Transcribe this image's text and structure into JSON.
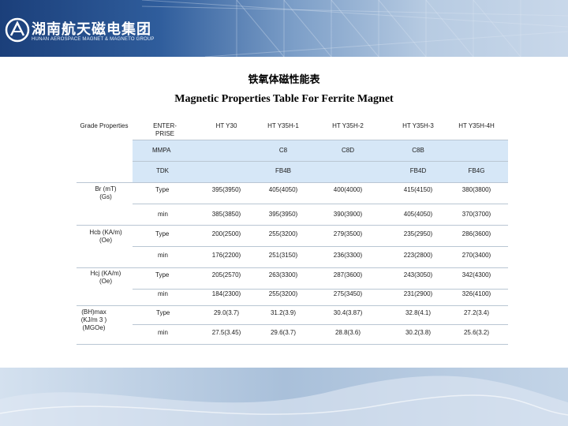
{
  "header": {
    "logo_cn": "湖南航天磁电集团",
    "logo_en": "HUNAN AEROSPACE MAGNET & MAGNETO GROUP"
  },
  "titles": {
    "cn": "铁氧体磁性能表",
    "en": "Magnetic Properties Table For Ferrite Magnet"
  },
  "table": {
    "header_corner": "Grade Properties",
    "columns": [
      "ENTER-PRISE",
      "HT Y30",
      "HT Y35H-1",
      "HT Y35H-2",
      "HT Y35H-3",
      "HT Y35H-4H"
    ],
    "enterprise_rows": [
      {
        "label": "MMPA",
        "values": [
          "",
          "C8",
          "C8D",
          "C8B",
          ""
        ]
      },
      {
        "label": "TDK",
        "values": [
          "",
          "FB4B",
          "",
          "FB4D",
          "FB4G"
        ]
      }
    ],
    "groups": [
      {
        "name": "Br (mT)(Gs)",
        "rows": [
          {
            "label": "Type",
            "values": [
              "395(3950)",
              "405(4050)",
              "400(4000)",
              "415(4150)",
              "380(3800)"
            ]
          },
          {
            "label": "min",
            "values": [
              "385(3850)",
              "395(3950)",
              "390(3900)",
              "405(4050)",
              "370(3700)"
            ]
          }
        ]
      },
      {
        "name": "Hcb (KA/m)(Oe)",
        "rows": [
          {
            "label": "Type",
            "values": [
              "200(2500)",
              "255(3200)",
              "279(3500)",
              "235(2950)",
              "286(3600)"
            ]
          },
          {
            "label": "min",
            "values": [
              "176(2200)",
              "251(3150)",
              "236(3300)",
              "223(2800)",
              "270(3400)"
            ]
          }
        ]
      },
      {
        "name": "Hcj (KA/m)(Oe)",
        "rows": [
          {
            "label": "Type",
            "values": [
              "205(2570)",
              "263(3300)",
              "287(3600)",
              "243(3050)",
              "342(4300)"
            ]
          },
          {
            "label": "min",
            "values": [
              "184(2300)",
              "255(3200)",
              "275(3450)",
              "231(2900)",
              "326(4100)"
            ]
          }
        ]
      },
      {
        "name": "(BH)max (KJ/m 3 ) (MGOe)",
        "rows": [
          {
            "label": "Type",
            "values": [
              "29.0(3.7)",
              "31.2(3.9)",
              "30.4(3.87)",
              "32.8(4.1)",
              "27.2(3.4)"
            ]
          },
          {
            "label": "min",
            "values": [
              "27.5(3.45)",
              "29.6(3.7)",
              "28.8(3.6)",
              "30.2(3.8)",
              "25.6(3.2)"
            ]
          }
        ]
      }
    ]
  },
  "colors": {
    "highlight_fill": "#d6e7f7",
    "banner_dark": "#1b3f7a",
    "rule": "#b9c6d3"
  }
}
